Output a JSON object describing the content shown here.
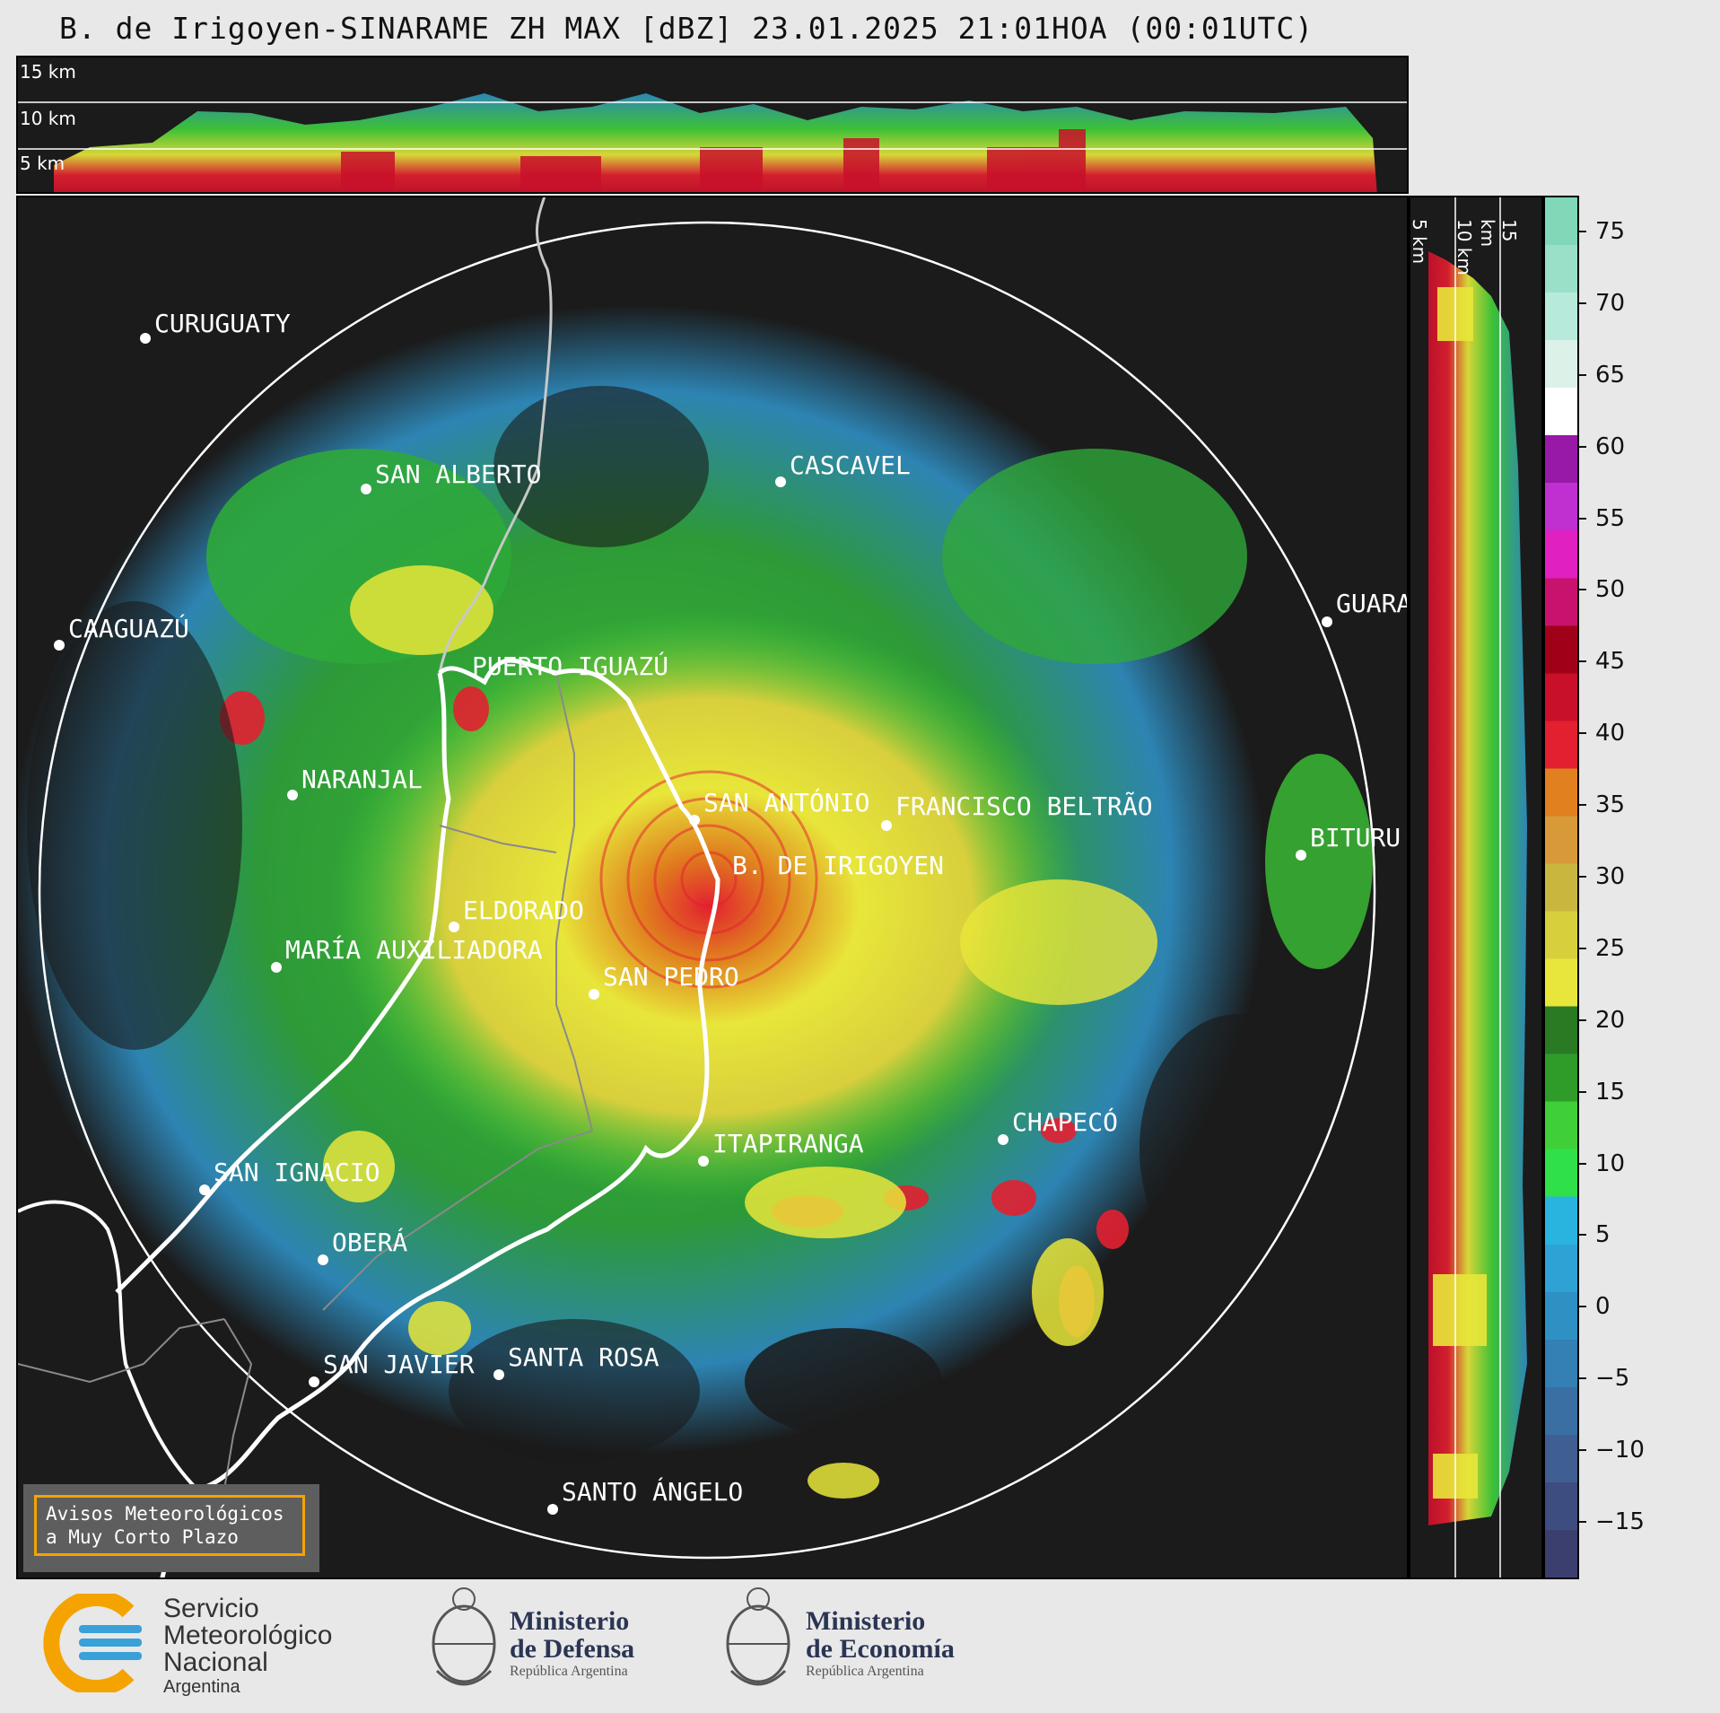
{
  "title": "B. de Irigoyen-SINARAME ZH MAX [dBZ] 23.01.2025 21:01HOA (00:01UTC)",
  "top_panel": {
    "height_labels": [
      "15 km",
      "10 km",
      "5 km"
    ]
  },
  "side_panel": {
    "height_labels": [
      "5 km",
      "10 km",
      "15 km"
    ]
  },
  "colorbar": {
    "unit": "dBZ",
    "ticks": [
      "75",
      "70",
      "65",
      "60",
      "55",
      "50",
      "45",
      "40",
      "35",
      "30",
      "25",
      "20",
      "15",
      "10",
      "5",
      "0",
      "−5",
      "−10",
      "−15"
    ],
    "colors": [
      "#3b3f6e",
      "#3e4d80",
      "#3f5f92",
      "#3a6fa3",
      "#347fb4",
      "#2f90c4",
      "#2ea2d4",
      "#29b4e0",
      "#2fe04a",
      "#3fcf38",
      "#2f9c2a",
      "#2a7a24",
      "#e8e63a",
      "#d8cf3c",
      "#c9b63e",
      "#d89a38",
      "#e0801e",
      "#e32030",
      "#c8102a",
      "#a00018",
      "#c8126e",
      "#e020c0",
      "#c030d0",
      "#9818a8",
      "#ffffff",
      "#dcf2e8",
      "#b8eadc",
      "#9ae0c8",
      "#80d8b8"
    ]
  },
  "cities": [
    {
      "name": "CURUGUATY"
    },
    {
      "name": "SAN ALBERTO"
    },
    {
      "name": "CASCAVEL"
    },
    {
      "name": "CAAGUAZÚ"
    },
    {
      "name": "GUARA"
    },
    {
      "name": "PUERTO IGUAZÚ"
    },
    {
      "name": "NARANJAL"
    },
    {
      "name": "SAN ANTÓNIO"
    },
    {
      "name": "FRANCISCO BELTRÃO"
    },
    {
      "name": "B. DE IRIGOYEN"
    },
    {
      "name": "BITURU"
    },
    {
      "name": "ELDORADO"
    },
    {
      "name": "MARÍA AUXILIADORA"
    },
    {
      "name": "SAN PEDRO"
    },
    {
      "name": "CHAPECÓ"
    },
    {
      "name": "ITAPIRANGA"
    },
    {
      "name": "SAN IGNACIO"
    },
    {
      "name": "OBERÁ"
    },
    {
      "name": "SAN JAVIER"
    },
    {
      "name": "SANTA ROSA"
    },
    {
      "name": "SANTO ÁNGELO"
    }
  ],
  "notice": {
    "line1": "Avisos Meteorológicos",
    "line2": "a Muy Corto Plazo"
  },
  "footer": {
    "smn": {
      "line1": "Servicio",
      "line2": "Meteorológico",
      "line3": "Nacional",
      "line4": "Argentina"
    },
    "defensa": {
      "line1": "Ministerio",
      "line2": "de Defensa",
      "line3": "República Argentina"
    },
    "economia": {
      "line1": "Ministerio",
      "line2": "de Economía",
      "line3": "República Argentina"
    }
  }
}
